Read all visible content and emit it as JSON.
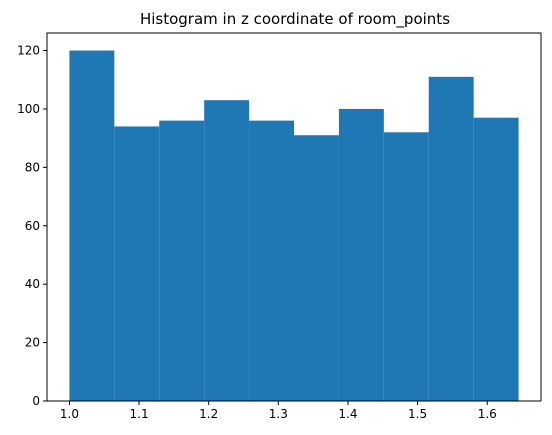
{
  "chart_data": {
    "type": "bar",
    "title": "Histogram in z coordinate of room_points",
    "xlabel": "",
    "ylabel": "",
    "bin_edges": [
      1.0,
      1.0645,
      1.129,
      1.1935,
      1.258,
      1.3225,
      1.387,
      1.4515,
      1.516,
      1.5805,
      1.645
    ],
    "values": [
      120,
      94,
      96,
      103,
      96,
      91,
      100,
      92,
      111,
      97
    ],
    "xlim": [
      0.9678,
      1.6772
    ],
    "ylim": [
      0,
      126
    ],
    "xticks": [
      1.0,
      1.1,
      1.2,
      1.3,
      1.4,
      1.5,
      1.6
    ],
    "xtick_labels": [
      "1.0",
      "1.1",
      "1.2",
      "1.3",
      "1.4",
      "1.5",
      "1.6"
    ],
    "yticks": [
      0,
      20,
      40,
      60,
      80,
      100,
      120
    ],
    "ytick_labels": [
      "0",
      "20",
      "40",
      "60",
      "80",
      "100",
      "120"
    ],
    "bar_color": "#1f77b4",
    "grid": false,
    "legend": "none"
  }
}
